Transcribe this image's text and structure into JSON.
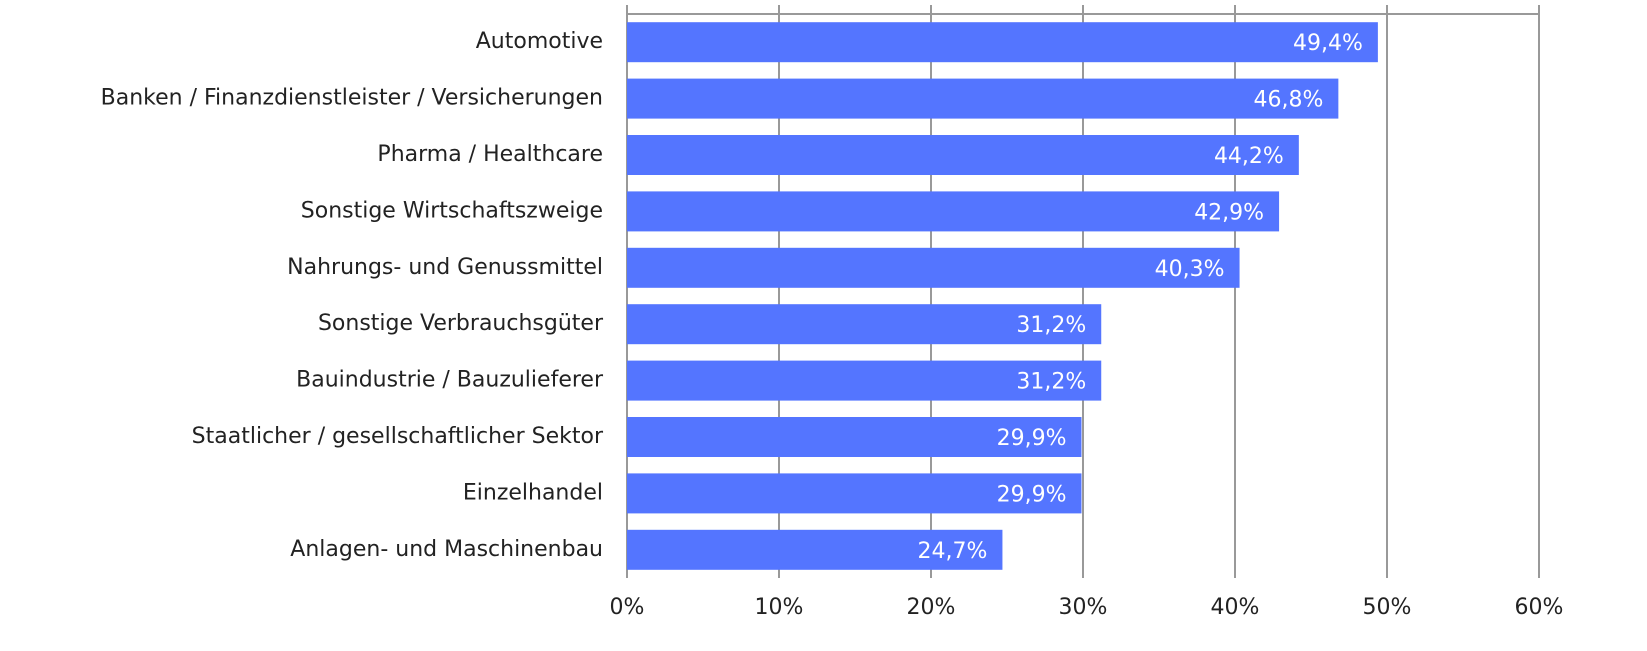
{
  "chart_data": {
    "type": "bar",
    "orientation": "horizontal",
    "categories": [
      "Automotive",
      "Banken / Finanzdienstleister / Versicherungen",
      "Pharma / Healthcare",
      "Sonstige Wirtschaftszweige",
      "Nahrungs- und Genussmittel",
      "Sonstige Verbrauchsgüter",
      "Bauindustrie / Bauzulieferer",
      "Staatlicher / gesellschaftlicher Sektor",
      "Einzelhandel",
      "Anlagen- und Maschinenbau"
    ],
    "values": [
      49.4,
      46.8,
      44.2,
      42.9,
      40.3,
      31.2,
      31.2,
      29.9,
      29.9,
      24.7
    ],
    "value_labels": [
      "49,4%",
      "46,8%",
      "44,2%",
      "42,9%",
      "40,3%",
      "31,2%",
      "31,2%",
      "29,9%",
      "29,9%",
      "24,7%"
    ],
    "color": "#5475ff",
    "xlim": [
      0,
      60
    ],
    "xticks": [
      {
        "value": 0,
        "label": "0%"
      },
      {
        "value": 10,
        "label": "10%"
      },
      {
        "value": 20,
        "label": "20%"
      },
      {
        "value": 30,
        "label": "30%"
      },
      {
        "value": 40,
        "label": "40%"
      },
      {
        "value": 50,
        "label": "50%"
      },
      {
        "value": 60,
        "label": "60%"
      }
    ],
    "grid": true
  }
}
